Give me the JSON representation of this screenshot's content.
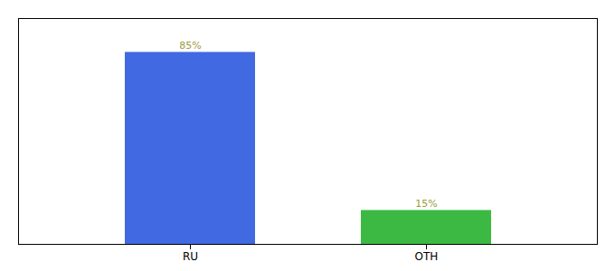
{
  "chart_data": {
    "type": "bar",
    "categories": [
      "RU",
      "OTH"
    ],
    "values": [
      85,
      15
    ],
    "colors": [
      "#4169E1",
      "#3CB943"
    ],
    "data_labels": true,
    "value_labels": [
      "85%",
      "15%"
    ],
    "ylim": [
      0,
      100
    ],
    "tick_labels": "x",
    "grid": false
  }
}
